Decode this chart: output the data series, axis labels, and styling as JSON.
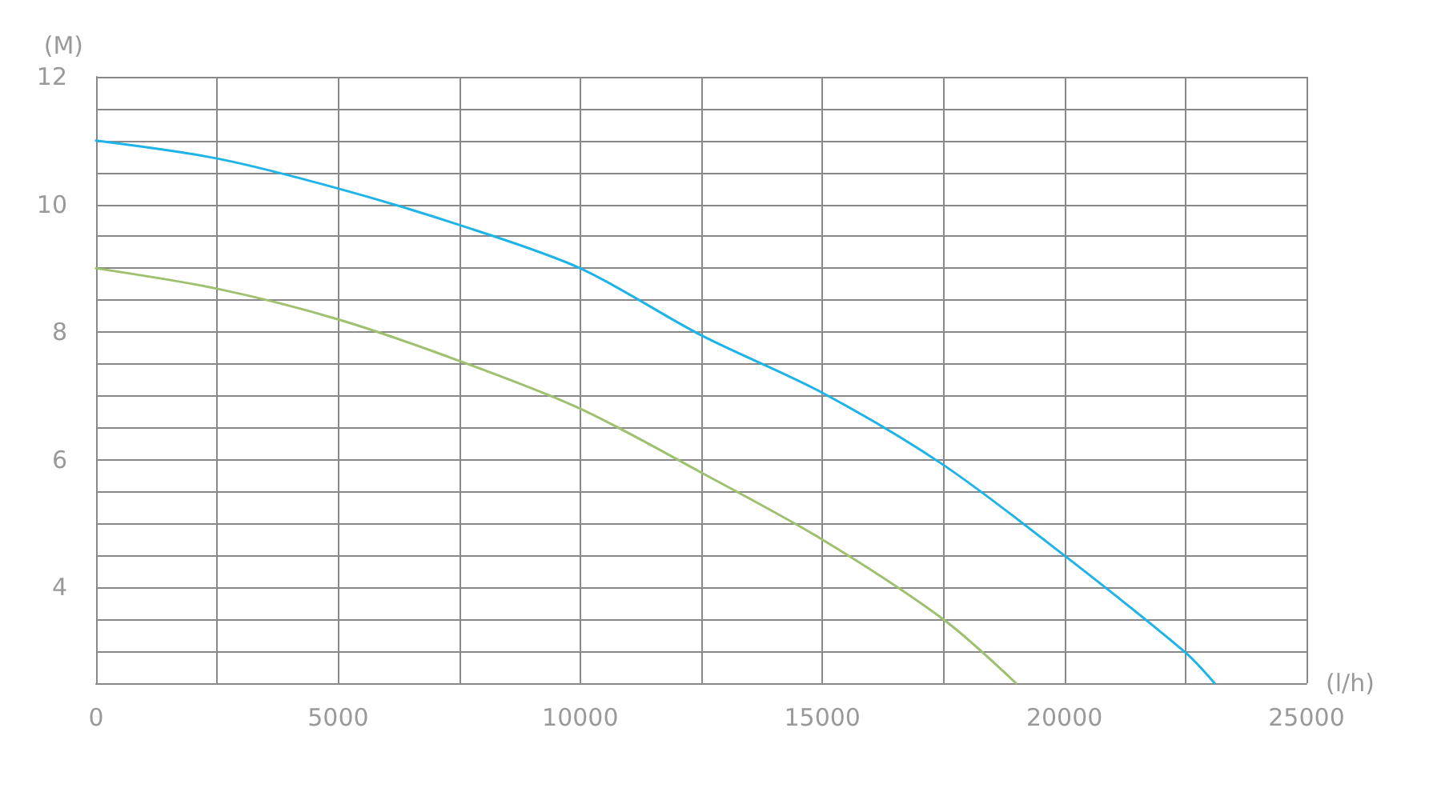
{
  "chart_data": {
    "type": "line",
    "xlabel": "(l/h)",
    "ylabel": "(M)",
    "xlim": [
      0,
      25000
    ],
    "xticks": [
      0,
      {
        "value": 2500,
        "label": null
      },
      5000,
      {
        "value": 7500,
        "label": null
      },
      10000,
      {
        "value": 12500,
        "label": null
      },
      15000,
      {
        "value": 17500,
        "label": null
      },
      20000,
      {
        "value": 22500,
        "label": null
      },
      25000
    ],
    "ylim": [
      2.5,
      12
    ],
    "yticks": [
      {
        "value": 3,
        "label": null
      },
      {
        "value": 3.5,
        "label": null
      },
      4,
      {
        "value": 4.5,
        "label": null
      },
      {
        "value": 5,
        "label": null
      },
      {
        "value": 5.5,
        "label": null
      },
      6,
      {
        "value": 6.5,
        "label": null
      },
      {
        "value": 7,
        "label": null
      },
      {
        "value": 7.5,
        "label": null
      },
      8,
      {
        "value": 8.5,
        "label": null
      },
      {
        "value": 9,
        "label": null
      },
      {
        "value": 9.5,
        "label": null
      },
      10,
      {
        "value": 10.5,
        "label": null
      },
      {
        "value": 11,
        "label": null
      },
      {
        "value": 11.5,
        "label": null
      },
      12
    ],
    "grid": true,
    "marker": "none",
    "line_style": "solid",
    "series": [
      {
        "color": "#9dc16e",
        "x": [
          0,
          2500,
          5000,
          7500,
          10000,
          12500,
          15000,
          17500,
          19000
        ],
        "values": [
          9,
          8.68,
          8.2,
          7.55,
          6.8,
          5.8,
          4.75,
          3.5,
          2.5
        ]
      },
      {
        "color": "#1fb4e8",
        "x": [
          0,
          2500,
          5000,
          7500,
          10000,
          12500,
          15000,
          17500,
          20000,
          22500,
          23100
        ],
        "values": [
          11,
          10.72,
          10.25,
          9.68,
          9.0,
          7.95,
          7.05,
          5.92,
          4.5,
          2.98,
          2.5
        ]
      }
    ]
  }
}
